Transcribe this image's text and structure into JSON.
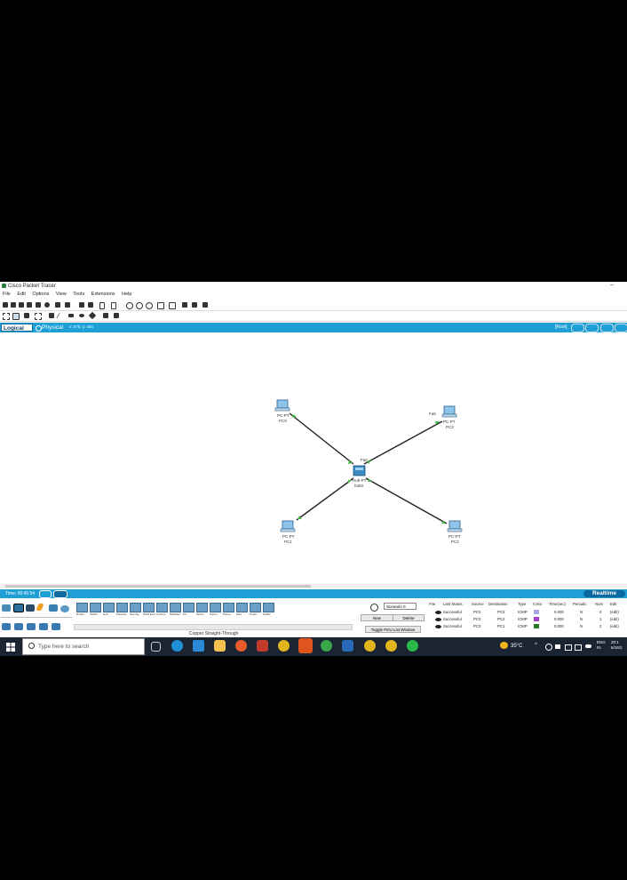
{
  "window": {
    "title": "Cisco Packet Tracer",
    "minimize": "–"
  },
  "menu": [
    "File",
    "Edit",
    "Options",
    "View",
    "Tools",
    "Extensions",
    "Help"
  ],
  "tabs": {
    "logical": "Logical",
    "physical": "Physical",
    "coords": "x: 575, y: 484",
    "root": "[Root]"
  },
  "topology": {
    "devices": [
      {
        "model": "PC-PT",
        "name": "PC0"
      },
      {
        "model": "PC-PT",
        "name": "PC1"
      },
      {
        "model": "PC-PT",
        "name": "PC2"
      },
      {
        "model": "PC-PT",
        "name": "PC3"
      },
      {
        "model": "Hub-PT",
        "name": "hub0"
      }
    ],
    "port_labels": [
      "Fa0",
      "Fa0"
    ]
  },
  "status": {
    "time": "Time: 00:45:54",
    "mode": "Realtime"
  },
  "device_list": [
    "Router",
    "Switch",
    "Hub",
    "Wireless",
    "Security",
    "WAN Emu",
    "Custom",
    "Multiuser",
    "PC",
    "Server",
    "Printer",
    "Phone",
    "Wire",
    "Smart",
    "Sniffer"
  ],
  "cable_label": "Copper Straight-Through",
  "pdu": {
    "scenario": "Scenario 0",
    "new": "New",
    "delete": "Delete",
    "toggle": "Toggle PDU List Window"
  },
  "events": {
    "headers": [
      "Fire",
      "Last Status",
      "Source",
      "Destination",
      "Type",
      "Color",
      "Time(sec)",
      "Periodic",
      "Num",
      "Edit"
    ],
    "rows": [
      {
        "status": "Successful",
        "source": "PC0",
        "destination": "PC3",
        "type": "ICMP",
        "color": "#a7a7e8",
        "time": "0.000",
        "periodic": "N",
        "num": "0",
        "edit": "(edit)"
      },
      {
        "status": "Successful",
        "source": "PC0",
        "destination": "PC2",
        "type": "ICMP",
        "color": "#a040c8",
        "time": "0.000",
        "periodic": "N",
        "num": "1",
        "edit": "(edit)"
      },
      {
        "status": "Successful",
        "source": "PC0",
        "destination": "PC1",
        "type": "ICMP",
        "color": "#2a7a2a",
        "time": "0.000",
        "periodic": "N",
        "num": "2",
        "edit": "(edit)"
      }
    ]
  },
  "taskbar": {
    "search_placeholder": "Type here to search",
    "temperature": "35°C",
    "lang1": "ENG",
    "lang2": "IN",
    "time": "20:1",
    "date": "6/16/2"
  }
}
